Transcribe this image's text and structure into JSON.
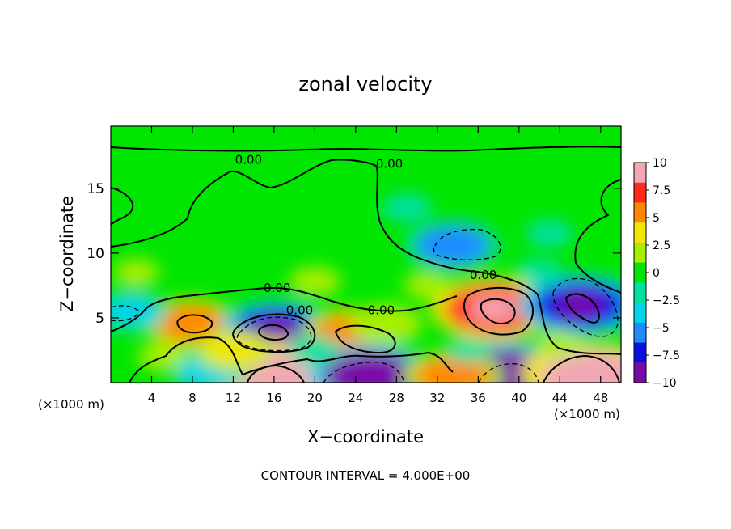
{
  "chart_data": {
    "type": "heatmap",
    "title": "zonal velocity",
    "xlabel": "X−coordinate",
    "ylabel": "Z−coordinate",
    "x_unit_left": "(×1000 m)",
    "x_unit_right": "(×1000 m)",
    "footer": "CONTOUR INTERVAL = 4.000E+00",
    "xlim": [
      0,
      50
    ],
    "ylim": [
      0,
      19.8
    ],
    "xticks": [
      4,
      8,
      12,
      16,
      20,
      24,
      28,
      32,
      36,
      40,
      44,
      48
    ],
    "xtick_labels": [
      "4",
      "8",
      "12",
      "16",
      "20",
      "24",
      "28",
      "32",
      "36",
      "40",
      "44",
      "48"
    ],
    "yticks": [
      5,
      10,
      15
    ],
    "ytick_labels": [
      "5",
      "10",
      "15"
    ],
    "colorbar": {
      "range": [
        -10,
        10
      ],
      "ticks": [
        10,
        7.5,
        5,
        2.5,
        0,
        -2.5,
        -5,
        -7.5,
        -10
      ],
      "tick_labels": [
        "10",
        "7.5",
        "5",
        "2.5",
        "0",
        "−2.5",
        "−5",
        "−7.5",
        "−10"
      ],
      "colors": [
        "#f2a8b4",
        "#ff2a1a",
        "#ff8800",
        "#f0e600",
        "#a8ee00",
        "#00e600",
        "#00e0a0",
        "#00d4e8",
        "#1e8cff",
        "#0a10e0",
        "#7a0aa8"
      ]
    },
    "contour_labels": [
      {
        "text": "0.00",
        "x": 13.5,
        "y": 17.2
      },
      {
        "text": "0.00",
        "x": 27.3,
        "y": 16.9
      },
      {
        "text": "0.00",
        "x": 16.3,
        "y": 7.3
      },
      {
        "text": "0.00",
        "x": 18.5,
        "y": 5.6
      },
      {
        "text": "0.00",
        "x": 26.5,
        "y": 5.6
      },
      {
        "text": "0.00",
        "x": 36.5,
        "y": 8.3
      }
    ],
    "features": [
      {
        "x": 7.8,
        "y": 4.6,
        "value": 5.5
      },
      {
        "x": 16.2,
        "y": 4.1,
        "value": -7.5
      },
      {
        "x": 16.2,
        "y": 0.6,
        "value": 11
      },
      {
        "x": 23.5,
        "y": 3.8,
        "value": 6
      },
      {
        "x": 25.5,
        "y": 0.5,
        "value": -9
      },
      {
        "x": 27,
        "y": 4.5,
        "value": 3
      },
      {
        "x": 33.5,
        "y": 10.6,
        "value": -5.5
      },
      {
        "x": 37.5,
        "y": 5.7,
        "value": 9
      },
      {
        "x": 38.7,
        "y": 0.6,
        "value": -10
      },
      {
        "x": 46,
        "y": 6,
        "value": -8.5
      },
      {
        "x": 46,
        "y": 0.8,
        "value": 8
      },
      {
        "x": 47.5,
        "y": 0.3,
        "value": 11
      },
      {
        "x": 2,
        "y": 5.5,
        "value": -3
      },
      {
        "x": 9.5,
        "y": 0.9,
        "value": -3.5
      },
      {
        "x": 33.5,
        "y": 0.5,
        "value": 6
      },
      {
        "x": 43,
        "y": 11.5,
        "value": -1.8
      },
      {
        "x": 29,
        "y": 13.5,
        "value": -2.3
      },
      {
        "x": 14,
        "y": 13.5,
        "value": -0.8
      },
      {
        "x": 2.5,
        "y": 8.5,
        "value": 1.6
      },
      {
        "x": 20,
        "y": 7.8,
        "value": 2.5
      },
      {
        "x": 31,
        "y": 7.5,
        "value": 1.8
      },
      {
        "x": 12,
        "y": 2.5,
        "value": 3.5
      },
      {
        "x": 20,
        "y": 2.5,
        "value": -2.5
      },
      {
        "x": 35,
        "y": 2.5,
        "value": -1.2
      },
      {
        "x": 44,
        "y": 3,
        "value": 1.6
      },
      {
        "x": 42,
        "y": 8.5,
        "value": -1.8
      },
      {
        "x": 25,
        "y": 18.8,
        "value": 0.8
      },
      {
        "x": 5,
        "y": 2,
        "value": 2
      }
    ]
  }
}
